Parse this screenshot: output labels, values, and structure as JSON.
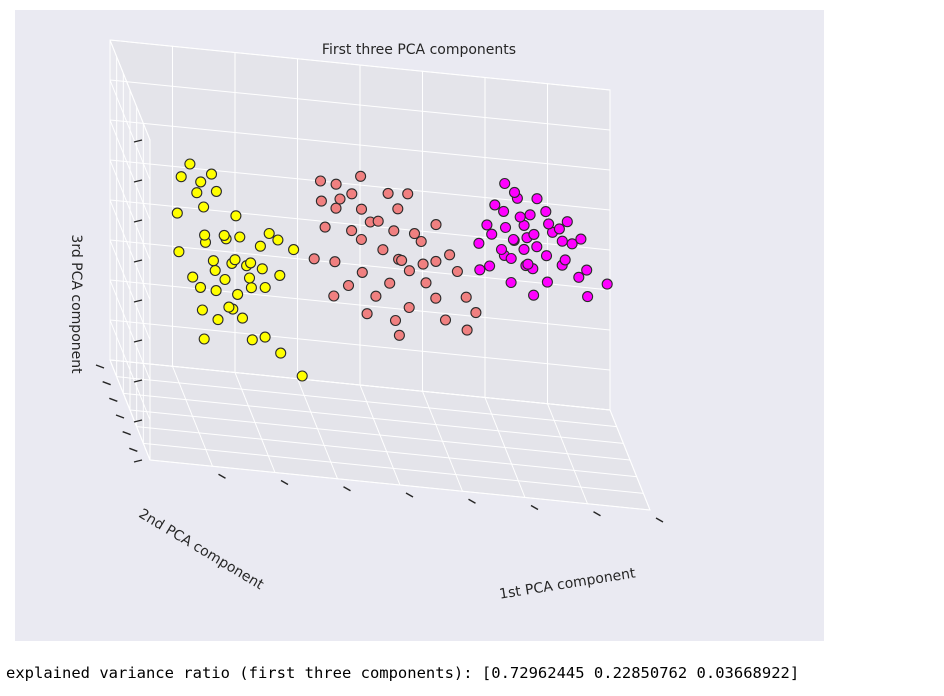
{
  "chart_data": {
    "type": "scatter",
    "title": "First three PCA components",
    "xlabel": "1st PCA component",
    "ylabel": "2nd PCA component",
    "zlabel": "3rd PCA component",
    "grid": true,
    "series": [
      {
        "color": "#ffff00",
        "points": [
          [
            -3.3,
            -1.0,
            1.1
          ],
          [
            -3.1,
            -0.7,
            1.2
          ],
          [
            -2.9,
            -0.6,
            0.9
          ],
          [
            -3.0,
            -0.8,
            0.8
          ],
          [
            -3.4,
            -1.2,
            0.6
          ],
          [
            -2.7,
            -0.5,
            1.0
          ],
          [
            -2.6,
            -0.4,
            0.7
          ],
          [
            -2.8,
            -0.3,
            0.4
          ],
          [
            -2.5,
            -0.6,
            0.1
          ],
          [
            -2.4,
            -0.2,
            -0.1
          ],
          [
            -2.3,
            -0.5,
            -0.3
          ],
          [
            -2.2,
            0.0,
            0.2
          ],
          [
            -2.6,
            -0.1,
            -0.5
          ],
          [
            -2.1,
            0.2,
            -0.2
          ],
          [
            -2.0,
            -0.3,
            -0.4
          ],
          [
            -2.5,
            0.3,
            -0.8
          ],
          [
            -2.3,
            0.5,
            -1.0
          ],
          [
            -2.0,
            0.1,
            -0.6
          ],
          [
            -1.9,
            0.4,
            -0.9
          ],
          [
            -1.8,
            -0.1,
            -0.2
          ],
          [
            -2.7,
            0.6,
            -1.2
          ],
          [
            -2.4,
            0.8,
            -1.3
          ],
          [
            -2.2,
            0.7,
            -1.5
          ],
          [
            -1.7,
            0.3,
            -0.7
          ],
          [
            -1.6,
            0.6,
            -1.1
          ],
          [
            -2.9,
            0.2,
            -0.9
          ],
          [
            -2.1,
            0.9,
            -1.6
          ],
          [
            -1.9,
            1.1,
            -1.8
          ],
          [
            -3.1,
            0.4,
            -0.6
          ],
          [
            -1.5,
            1.2,
            -2.1
          ],
          [
            -2.0,
            1.0,
            -1.4
          ],
          [
            -1.8,
            0.8,
            -1.2
          ],
          [
            -2.6,
            1.0,
            -1.7
          ],
          [
            -2.3,
            1.2,
            -1.9
          ],
          [
            -1.4,
            0.5,
            -0.3
          ],
          [
            -1.6,
            0.2,
            -0.1
          ],
          [
            -1.2,
            1.4,
            -2.4
          ],
          [
            -0.8,
            1.6,
            -2.8
          ],
          [
            -2.8,
            -0.4,
            0.0
          ],
          [
            -1.3,
            0.9,
            -1.0
          ],
          [
            -2.2,
            0.4,
            -0.7
          ],
          [
            -1.1,
            0.7,
            -0.5
          ],
          [
            -2.7,
            0.1,
            -0.3
          ],
          [
            -1.7,
            1.3,
            -2.2
          ],
          [
            -2.5,
            1.4,
            -2.3
          ]
        ]
      },
      {
        "color": "#f08080",
        "points": [
          [
            -1.0,
            -1.4,
            1.4
          ],
          [
            -0.7,
            -1.2,
            1.3
          ],
          [
            -0.4,
            -1.0,
            1.1
          ],
          [
            -0.9,
            -0.9,
            0.9
          ],
          [
            -0.2,
            -0.8,
            0.8
          ],
          [
            0.2,
            -1.1,
            1.2
          ],
          [
            0.5,
            -1.3,
            1.3
          ],
          [
            0.1,
            -0.7,
            0.6
          ],
          [
            -0.6,
            -0.6,
            0.7
          ],
          [
            0.4,
            -0.5,
            0.4
          ],
          [
            -0.3,
            -0.4,
            0.3
          ],
          [
            0.7,
            -0.8,
            0.5
          ],
          [
            0.9,
            -0.3,
            0.2
          ],
          [
            -0.1,
            -0.2,
            0.1
          ],
          [
            0.3,
            0.0,
            -0.1
          ],
          [
            0.6,
            -0.1,
            -0.2
          ],
          [
            1.0,
            0.1,
            -0.3
          ],
          [
            -0.5,
            0.1,
            -0.4
          ],
          [
            0.8,
            0.3,
            -0.5
          ],
          [
            1.2,
            0.0,
            -0.2
          ],
          [
            0.0,
            0.3,
            -0.6
          ],
          [
            0.5,
            0.5,
            -0.8
          ],
          [
            1.1,
            0.4,
            -0.7
          ],
          [
            -0.2,
            0.5,
            -0.9
          ],
          [
            0.3,
            0.7,
            -1.1
          ],
          [
            1.3,
            0.6,
            -1.0
          ],
          [
            0.9,
            0.9,
            -1.3
          ],
          [
            -0.4,
            0.8,
            -1.2
          ],
          [
            0.7,
            1.1,
            -1.6
          ],
          [
            1.5,
            0.8,
            -1.4
          ],
          [
            0.2,
            1.0,
            -1.5
          ],
          [
            1.4,
            -0.2,
            0.0
          ],
          [
            -0.7,
            -0.1,
            0.2
          ],
          [
            0.0,
            -0.5,
            0.5
          ],
          [
            1.6,
            0.2,
            -0.4
          ],
          [
            -0.8,
            0.4,
            -0.5
          ],
          [
            0.6,
            0.2,
            -0.3
          ],
          [
            1.8,
            0.5,
            -0.9
          ],
          [
            2.0,
            0.7,
            -1.2
          ],
          [
            1.9,
            1.0,
            -1.6
          ],
          [
            -0.6,
            -1.0,
            1.0
          ],
          [
            0.4,
            -0.9,
            0.9
          ],
          [
            1.1,
            -0.6,
            0.6
          ],
          [
            -0.3,
            -1.3,
            1.5
          ],
          [
            0.8,
            1.3,
            -1.9
          ]
        ]
      },
      {
        "color": "#ff00ff",
        "points": [
          [
            2.2,
            -1.0,
            1.5
          ],
          [
            2.4,
            -0.8,
            1.3
          ],
          [
            2.1,
            -0.6,
            1.0
          ],
          [
            2.5,
            -0.5,
            1.1
          ],
          [
            2.8,
            -0.7,
            1.2
          ],
          [
            2.3,
            -0.3,
            0.8
          ],
          [
            2.6,
            -0.2,
            0.7
          ],
          [
            3.0,
            -0.4,
            0.9
          ],
          [
            2.7,
            0.0,
            0.5
          ],
          [
            3.1,
            -0.1,
            0.6
          ],
          [
            2.4,
            0.1,
            0.4
          ],
          [
            2.9,
            0.2,
            0.3
          ],
          [
            3.3,
            0.0,
            0.5
          ],
          [
            2.2,
            0.3,
            0.2
          ],
          [
            2.6,
            0.4,
            0.1
          ],
          [
            3.0,
            0.5,
            0.0
          ],
          [
            3.4,
            0.3,
            0.2
          ],
          [
            2.8,
            0.6,
            -0.1
          ],
          [
            3.2,
            0.7,
            -0.2
          ],
          [
            2.5,
            0.8,
            -0.3
          ],
          [
            2.0,
            0.4,
            0.0
          ],
          [
            3.6,
            0.5,
            0.1
          ],
          [
            3.5,
            0.9,
            -0.4
          ],
          [
            2.9,
            1.0,
            -0.5
          ],
          [
            2.3,
            1.1,
            -0.6
          ],
          [
            3.3,
            1.2,
            -0.8
          ],
          [
            3.8,
            1.0,
            -0.6
          ],
          [
            2.7,
            1.3,
            -0.9
          ],
          [
            3.1,
            1.4,
            -1.1
          ],
          [
            4.0,
            1.3,
            -1.0
          ],
          [
            2.1,
            0.9,
            -0.6
          ],
          [
            3.7,
            0.2,
            0.3
          ],
          [
            2.5,
            -0.1,
            0.3
          ],
          [
            3.2,
            0.1,
            0.4
          ],
          [
            2.8,
            0.3,
            0.2
          ],
          [
            3.5,
            0.6,
            -0.2
          ],
          [
            2.6,
            0.7,
            -0.3
          ],
          [
            3.0,
            0.9,
            -0.5
          ],
          [
            2.4,
            0.5,
            -0.1
          ],
          [
            3.9,
            0.8,
            -0.4
          ],
          [
            2.0,
            -0.4,
            0.6
          ],
          [
            4.3,
            1.1,
            -0.7
          ],
          [
            2.7,
            -0.6,
            0.9
          ],
          [
            3.4,
            -0.2,
            0.7
          ],
          [
            2.9,
            0.8,
            -0.4
          ]
        ]
      }
    ]
  },
  "output": {
    "text": "explained variance ratio (first three components): [0.72962445 0.22850762 0.03668922]"
  }
}
